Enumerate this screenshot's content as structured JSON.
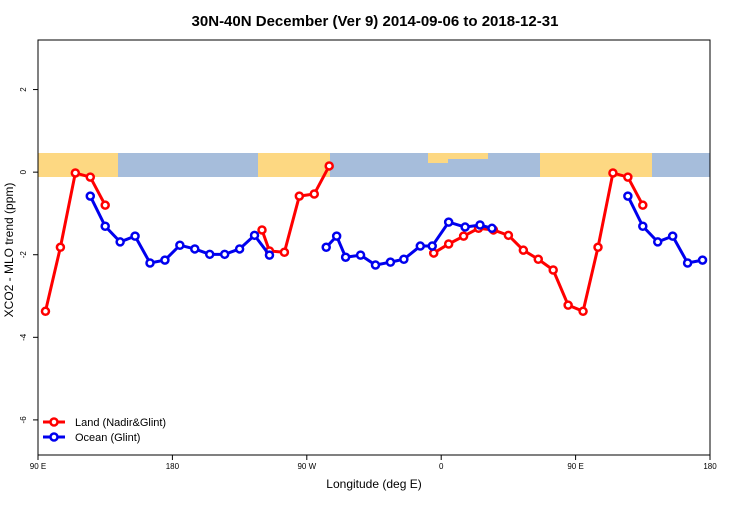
{
  "chart_data": {
    "type": "line",
    "title": "30N-40N December (Ver 9)   2014-09-06 to 2018-12-31",
    "x_label": "Longitude (deg E)",
    "y_label": "XCO2 - MLO trend (ppm)",
    "xlim": [
      90,
      540
    ],
    "xticks": [
      {
        "value": 90,
        "label": "90 E"
      },
      180,
      {
        "value": 270,
        "label": "90 W"
      },
      {
        "value": 360,
        "label": "0"
      },
      {
        "value": 450,
        "label": "90 E"
      },
      {
        "value": 540,
        "label": "180"
      }
    ],
    "ylim": [
      -6.85,
      3.2
    ],
    "yticks": [
      -6,
      -4,
      -2,
      0,
      2
    ],
    "legend": "bottom-left",
    "series": [
      {
        "name": "Land (Nadir&Glint)",
        "color": "#ff0000",
        "x": [
          95,
          105,
          115,
          125,
          135,
          185,
          240,
          245,
          255,
          265,
          275,
          285,
          320,
          355,
          365,
          375,
          385,
          395,
          405,
          415,
          425,
          435,
          445,
          455,
          465,
          475,
          485,
          495
        ],
        "values": [
          -3.37,
          -1.82,
          -0.02,
          -0.12,
          -0.8,
          null,
          -1.4,
          -1.91,
          -1.94,
          -0.58,
          -0.53,
          0.15,
          null,
          -1.96,
          -1.74,
          -1.55,
          -1.36,
          -1.4,
          -1.53,
          -1.89,
          -2.11,
          -2.37,
          -3.22,
          -3.37,
          -1.82,
          -0.02,
          -0.12,
          -0.8
        ]
      },
      {
        "name": "Ocean (Glint)",
        "color": "#0000ee",
        "x": [
          125,
          135,
          145,
          155,
          165,
          175,
          185,
          195,
          205,
          215,
          225,
          235,
          245,
          265,
          283,
          290,
          296,
          306,
          316,
          326,
          335,
          346,
          354,
          365,
          376,
          386,
          394,
          440,
          485,
          495,
          505,
          515,
          525,
          535
        ],
        "values": [
          -0.58,
          -1.31,
          -1.69,
          -1.55,
          -2.2,
          -2.13,
          -1.77,
          -1.86,
          -1.99,
          -1.99,
          -1.86,
          -1.53,
          -2.01,
          null,
          -1.82,
          -1.55,
          -2.06,
          -2.01,
          -2.25,
          -2.18,
          -2.11,
          -1.79,
          -1.79,
          -1.21,
          -1.33,
          -1.28,
          -1.36,
          null,
          -0.58,
          -1.31,
          -1.69,
          -1.55,
          -2.2,
          -2.13
        ]
      }
    ]
  }
}
